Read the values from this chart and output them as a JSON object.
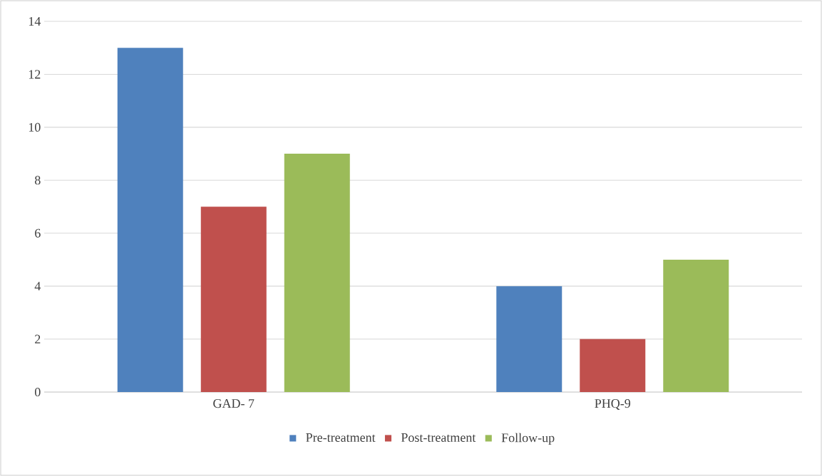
{
  "chart_data": {
    "type": "bar",
    "categories": [
      "GAD- 7",
      "PHQ-9"
    ],
    "series": [
      {
        "name": "Pre-treatment",
        "color": "#4f81bd",
        "values": [
          13,
          4
        ]
      },
      {
        "name": "Post-treatment",
        "color": "#c0504d",
        "values": [
          7,
          2
        ]
      },
      {
        "name": "Follow-up",
        "color": "#9bbb59",
        "values": [
          9,
          5
        ]
      }
    ],
    "ylim": [
      0,
      14
    ],
    "yticks": [
      0,
      2,
      4,
      6,
      8,
      10,
      12,
      14
    ],
    "grid": "y",
    "legend": "bottom"
  }
}
